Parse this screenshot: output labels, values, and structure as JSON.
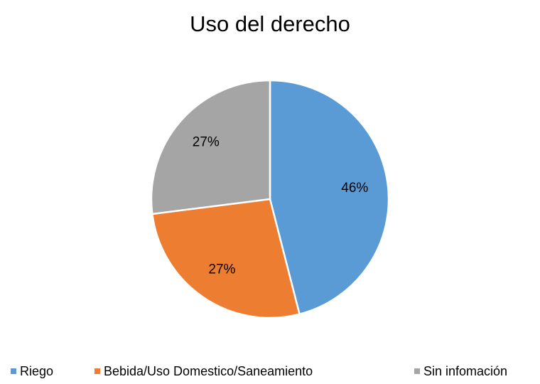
{
  "chart_data": {
    "type": "pie",
    "title": "Uso del derecho",
    "categories": [
      "Riego",
      "Bebida/Uso Domestico/Saneamiento",
      "Sin infomación"
    ],
    "values": [
      46,
      27,
      27
    ],
    "value_labels": [
      "46%",
      "27%",
      "27%"
    ],
    "colors": [
      "#5b9bd5",
      "#ed7d31",
      "#a5a5a5"
    ],
    "legend": "bottom"
  }
}
